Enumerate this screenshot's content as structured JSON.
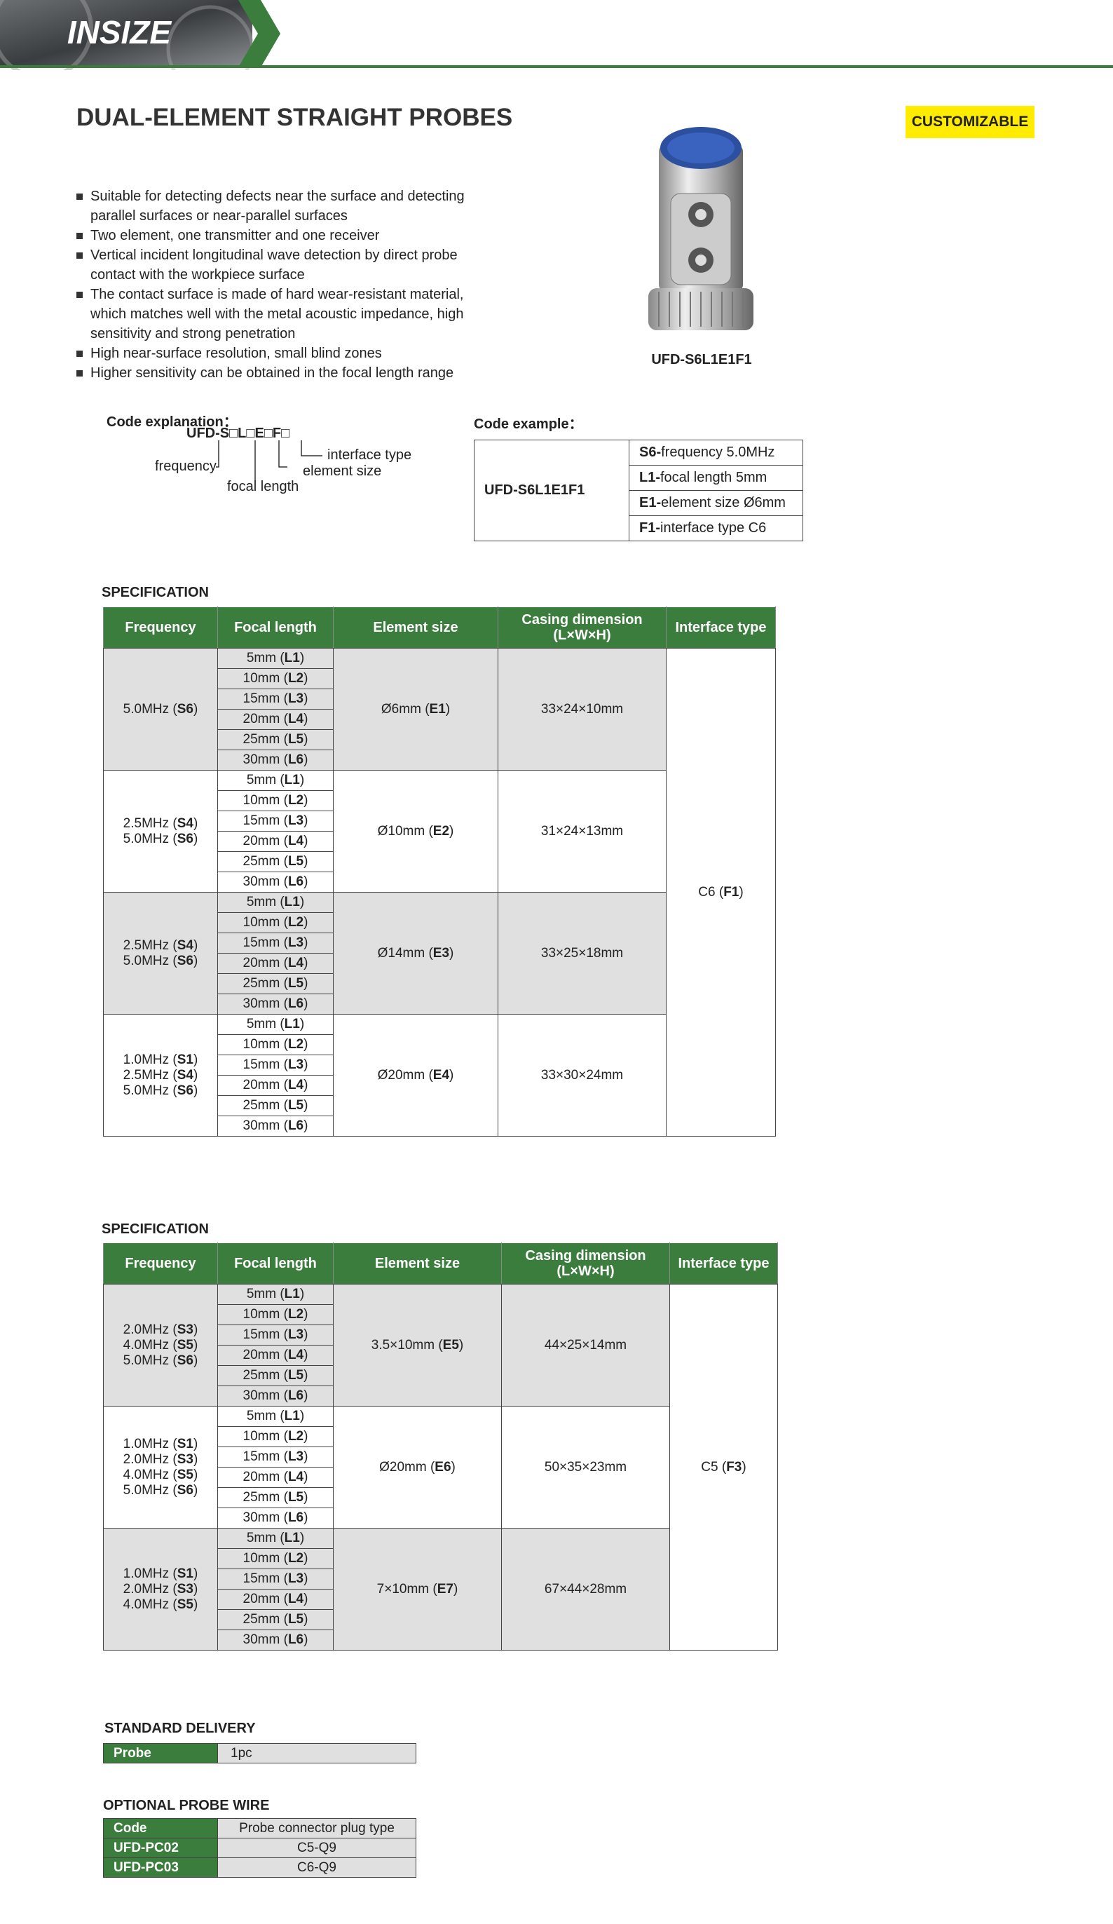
{
  "header": {
    "logo": "INSIZE"
  },
  "title": "DUAL-ELEMENT STRAIGHT PROBES",
  "badge": "CUSTOMIZABLE",
  "features": [
    "Suitable for detecting defects near the surface and detecting parallel surfaces or near-parallel surfaces",
    "Two element, one transmitter and one receiver",
    "Vertical incident longitudinal wave detection by direct probe contact with the workpiece surface",
    "The contact surface is made of hard wear-resistant material, which matches well with the metal acoustic impedance, high sensitivity and strong penetration",
    "High near-surface resolution, small blind zones",
    "Higher sensitivity can be obtained in the focal length range"
  ],
  "product_caption": "UFD-S6L1E1F1",
  "code_explanation": {
    "title": "Code explanation：",
    "code": "UFD-S□L□E□F□",
    "interface": "interface type",
    "element": "element size",
    "frequency": "frequency",
    "focal": "focal length"
  },
  "code_example": {
    "title": "Code example：",
    "model": "UFD-S6L1E1F1",
    "rows": [
      {
        "code": "S6-",
        "text": "frequency 5.0MHz"
      },
      {
        "code": "L1-",
        "text": "focal length 5mm"
      },
      {
        "code": "E1-",
        "text": "element size Ø6mm"
      },
      {
        "code": "F1-",
        "text": "interface type C6"
      }
    ]
  },
  "spec_tables": [
    {
      "title": "SPECIFICATION",
      "headers": [
        "Frequency",
        "Focal length",
        "Element size",
        "Casing dimension (L×W×H)",
        "Interface type"
      ],
      "interface": "C6 (F1)",
      "groups": [
        {
          "frequency": [
            "5.0MHz (S6)"
          ],
          "focal_lengths": [
            "5mm (L1)",
            "10mm (L2)",
            "15mm (L3)",
            "20mm (L4)",
            "25mm (L5)",
            "30mm (L6)"
          ],
          "element_size": "Ø6mm (E1)",
          "casing": "33×24×10mm"
        },
        {
          "frequency": [
            "2.5MHz (S4)",
            "5.0MHz (S6)"
          ],
          "focal_lengths": [
            "5mm (L1)",
            "10mm (L2)",
            "15mm (L3)",
            "20mm (L4)",
            "25mm (L5)",
            "30mm (L6)"
          ],
          "element_size": "Ø10mm (E2)",
          "casing": "31×24×13mm"
        },
        {
          "frequency": [
            "2.5MHz (S4)",
            "5.0MHz (S6)"
          ],
          "focal_lengths": [
            "5mm (L1)",
            "10mm (L2)",
            "15mm (L3)",
            "20mm (L4)",
            "25mm (L5)",
            "30mm (L6)"
          ],
          "element_size": "Ø14mm (E3)",
          "casing": "33×25×18mm"
        },
        {
          "frequency": [
            "1.0MHz (S1)",
            "2.5MHz (S4)",
            "5.0MHz (S6)"
          ],
          "focal_lengths": [
            "5mm (L1)",
            "10mm (L2)",
            "15mm (L3)",
            "20mm (L4)",
            "25mm (L5)",
            "30mm (L6)"
          ],
          "element_size": "Ø20mm (E4)",
          "casing": "33×30×24mm"
        }
      ]
    },
    {
      "title": "SPECIFICATION",
      "headers": [
        "Frequency",
        "Focal length",
        "Element size",
        "Casing dimension (L×W×H)",
        "Interface type"
      ],
      "interface": "C5 (F3)",
      "groups": [
        {
          "frequency": [
            "2.0MHz (S3)",
            "4.0MHz (S5)",
            "5.0MHz (S6)"
          ],
          "focal_lengths": [
            "5mm (L1)",
            "10mm (L2)",
            "15mm (L3)",
            "20mm (L4)",
            "25mm (L5)",
            "30mm (L6)"
          ],
          "element_size": "3.5×10mm (E5)",
          "casing": "44×25×14mm"
        },
        {
          "frequency": [
            "1.0MHz (S1)",
            "2.0MHz (S3)",
            "4.0MHz (S5)",
            "5.0MHz (S6)"
          ],
          "focal_lengths": [
            "5mm (L1)",
            "10mm (L2)",
            "15mm (L3)",
            "20mm (L4)",
            "25mm (L5)",
            "30mm (L6)"
          ],
          "element_size": "Ø20mm (E6)",
          "casing": "50×35×23mm"
        },
        {
          "frequency": [
            "1.0MHz (S1)",
            "2.0MHz (S3)",
            "4.0MHz (S5)"
          ],
          "focal_lengths": [
            "5mm (L1)",
            "10mm (L2)",
            "15mm (L3)",
            "20mm (L4)",
            "25mm (L5)",
            "30mm (L6)"
          ],
          "element_size": "7×10mm (E7)",
          "casing": "67×44×28mm"
        }
      ]
    }
  ],
  "standard_delivery": {
    "title": "STANDARD DELIVERY",
    "rows": [
      [
        "Probe",
        "1pc"
      ]
    ]
  },
  "optional_wire": {
    "title": "OPTIONAL PROBE WIRE",
    "header": [
      "Code",
      "Probe connector plug type"
    ],
    "rows": [
      [
        "UFD-PC02",
        "C5-Q9"
      ],
      [
        "UFD-PC03",
        "C6-Q9"
      ]
    ]
  }
}
